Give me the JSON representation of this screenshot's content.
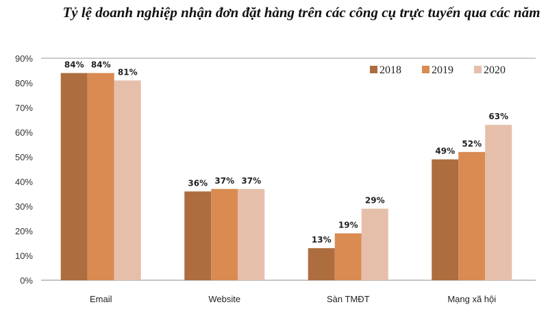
{
  "chart_data": {
    "type": "bar",
    "title": "Tỷ lệ doanh nghiệp nhận đơn đặt hàng trên các công cụ trực tuyến qua các năm",
    "categories": [
      "Email",
      "Website",
      "Sàn TMĐT",
      "Mạng xã hội"
    ],
    "series": [
      {
        "name": "2018",
        "color": "#ae6d3e",
        "values": [
          84,
          36,
          13,
          49
        ],
        "labels": [
          "84%",
          "36%",
          "13%",
          "49%"
        ]
      },
      {
        "name": "2019",
        "color": "#d98b52",
        "values": [
          84,
          37,
          19,
          52
        ],
        "labels": [
          "84%",
          "37%",
          "19%",
          "52%"
        ]
      },
      {
        "name": "2020",
        "color": "#e6bfab",
        "values": [
          81,
          37,
          29,
          63
        ],
        "labels": [
          "81%",
          "37%",
          "29%",
          "63%"
        ]
      }
    ],
    "ylim": [
      0,
      90
    ],
    "yticks": [
      "0%",
      "10%",
      "20%",
      "30%",
      "40%",
      "50%",
      "60%",
      "70%",
      "80%",
      "90%"
    ],
    "xlabel": "",
    "ylabel": "",
    "legend": "top-right",
    "grid": false
  }
}
